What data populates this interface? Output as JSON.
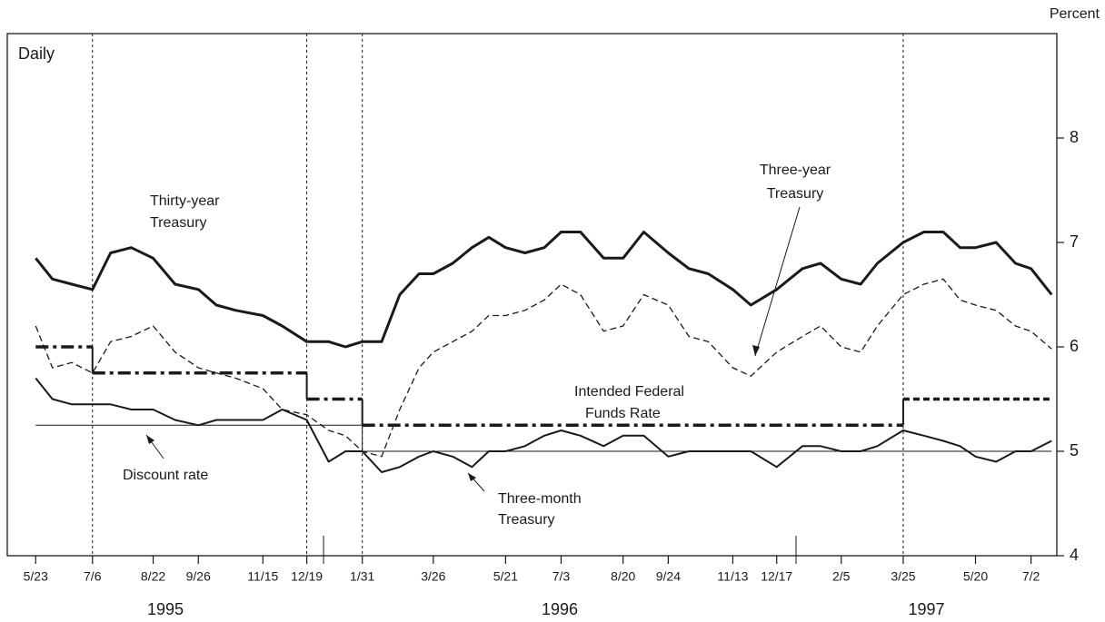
{
  "chart_data": {
    "type": "line",
    "unit_label": "Percent",
    "frequency_label": "Daily",
    "xlim": [
      "1995-05-01",
      "1997-07-22"
    ],
    "ylim": [
      4,
      9
    ],
    "yticks": [
      4,
      5,
      6,
      7,
      8
    ],
    "xticks": [
      {
        "value": "1995-05-23",
        "label": "5/23"
      },
      {
        "value": "1995-07-06",
        "label": "7/6"
      },
      {
        "value": "1995-08-22",
        "label": "8/22"
      },
      {
        "value": "1995-09-26",
        "label": "9/26"
      },
      {
        "value": "1995-11-15",
        "label": "11/15"
      },
      {
        "value": "1995-12-19",
        "label": "12/19"
      },
      {
        "value": "1996-01-31",
        "label": "1/31"
      },
      {
        "value": "1996-03-26",
        "label": "3/26"
      },
      {
        "value": "1996-05-21",
        "label": "5/21"
      },
      {
        "value": "1996-07-03",
        "label": "7/3"
      },
      {
        "value": "1996-08-20",
        "label": "8/20"
      },
      {
        "value": "1996-09-24",
        "label": "9/24"
      },
      {
        "value": "1996-11-13",
        "label": "11/13"
      },
      {
        "value": "1996-12-17",
        "label": "12/17"
      },
      {
        "value": "1997-02-05",
        "label": "2/5"
      },
      {
        "value": "1997-03-25",
        "label": "3/25"
      },
      {
        "value": "1997-05-20",
        "label": "5/20"
      },
      {
        "value": "1997-07-02",
        "label": "7/2"
      }
    ],
    "year_labels": [
      "1995",
      "1996",
      "1997"
    ],
    "event_lines": [
      "1995-07-06",
      "1995-12-19",
      "1996-01-31",
      "1997-03-25"
    ],
    "x": [
      "1995-05-23",
      "1995-06-05",
      "1995-06-20",
      "1995-07-06",
      "1995-07-20",
      "1995-08-05",
      "1995-08-22",
      "1995-09-08",
      "1995-09-26",
      "1995-10-10",
      "1995-10-25",
      "1995-11-15",
      "1995-11-30",
      "1995-12-19",
      "1996-01-05",
      "1996-01-18",
      "1996-01-31",
      "1996-02-15",
      "1996-02-29",
      "1996-03-15",
      "1996-03-26",
      "1996-04-10",
      "1996-04-25",
      "1996-05-08",
      "1996-05-21",
      "1996-06-05",
      "1996-06-20",
      "1996-07-03",
      "1996-07-18",
      "1996-08-05",
      "1996-08-20",
      "1996-09-05",
      "1996-09-24",
      "1996-10-10",
      "1996-10-25",
      "1996-11-13",
      "1996-11-27",
      "1996-12-17",
      "1997-01-06",
      "1997-01-20",
      "1997-02-05",
      "1997-02-20",
      "1997-03-05",
      "1997-03-25",
      "1997-04-10",
      "1997-04-25",
      "1997-05-08",
      "1997-05-20",
      "1997-06-05",
      "1997-06-20",
      "1997-07-02",
      "1997-07-18"
    ],
    "series": [
      {
        "color": "#1a1a1a",
        "width": 3,
        "dash": "solid",
        "values": [
          6.85,
          6.65,
          6.6,
          6.55,
          6.9,
          6.95,
          6.85,
          6.6,
          6.55,
          6.4,
          6.35,
          6.3,
          6.2,
          6.05,
          6.05,
          6.0,
          6.05,
          6.05,
          6.5,
          6.7,
          6.7,
          6.8,
          6.95,
          7.05,
          6.95,
          6.9,
          6.95,
          7.1,
          7.1,
          6.85,
          6.85,
          7.1,
          6.9,
          6.75,
          6.7,
          6.55,
          6.4,
          6.55,
          6.75,
          6.8,
          6.65,
          6.6,
          6.8,
          7.0,
          7.1,
          7.1,
          6.95,
          6.95,
          7.0,
          6.8,
          6.75,
          6.5
        ]
      },
      {
        "color": "#1a1a1a",
        "width": 1.3,
        "dash": "dash",
        "values": [
          6.2,
          5.8,
          5.85,
          5.75,
          6.05,
          6.1,
          6.2,
          5.95,
          5.8,
          5.75,
          5.7,
          5.6,
          5.4,
          5.35,
          5.2,
          5.15,
          5.0,
          4.95,
          5.4,
          5.8,
          5.95,
          6.05,
          6.15,
          6.3,
          6.3,
          6.35,
          6.45,
          6.6,
          6.5,
          6.15,
          6.2,
          6.5,
          6.4,
          6.1,
          6.05,
          5.8,
          5.72,
          5.95,
          6.1,
          6.2,
          6.0,
          5.95,
          6.2,
          6.5,
          6.6,
          6.65,
          6.45,
          6.4,
          6.35,
          6.2,
          6.15,
          5.98
        ]
      },
      {
        "color": "#1a1a1a",
        "width": 2,
        "dash": "solid",
        "values": [
          5.7,
          5.5,
          5.45,
          5.45,
          5.45,
          5.4,
          5.4,
          5.3,
          5.25,
          5.3,
          5.3,
          5.3,
          5.4,
          5.3,
          4.9,
          5.0,
          5.0,
          4.8,
          4.85,
          4.95,
          5.0,
          4.95,
          4.85,
          5.0,
          5.0,
          5.05,
          5.15,
          5.2,
          5.15,
          5.05,
          5.15,
          5.15,
          4.95,
          5.0,
          5.0,
          5.0,
          5.0,
          4.85,
          5.05,
          5.05,
          5.0,
          5.0,
          5.05,
          5.2,
          5.15,
          5.1,
          5.05,
          4.95,
          4.9,
          5.0,
          5.0,
          5.1
        ]
      }
    ],
    "steps": [
      {
        "color": "#1a1a1a",
        "width": 3.5,
        "x": [
          "1995-05-23",
          "1995-07-06",
          "1995-12-19",
          "1996-01-31",
          "1997-03-25"
        ],
        "values": [
          6.0,
          5.75,
          5.5,
          5.25,
          5.5
        ],
        "dashes": [
          "dash-dot",
          "dash-dot",
          "dash-dot",
          "dash-dot",
          "dash"
        ]
      },
      {
        "color": "#1a1a1a",
        "width": 1,
        "x": [
          "1995-05-23",
          "1996-01-31"
        ],
        "values": [
          5.25,
          5.0
        ],
        "dashes": [
          "solid",
          "solid"
        ]
      }
    ],
    "annotations": [
      {
        "lines": [
          "Thirty-year",
          "Treasury"
        ]
      },
      {
        "lines": [
          "Three-year",
          "Treasury"
        ]
      },
      {
        "lines": [
          "Intended Federal",
          "Funds Rate"
        ]
      },
      {
        "lines": [
          "Discount rate"
        ]
      },
      {
        "lines": [
          "Three-month",
          "Treasury"
        ]
      }
    ]
  }
}
